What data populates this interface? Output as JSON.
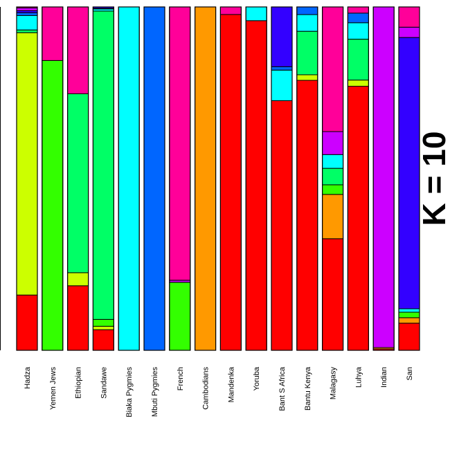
{
  "chart_data": {
    "type": "bar",
    "stacked": true,
    "normalized": true,
    "ylim": [
      0,
      1
    ],
    "title": "K = 10",
    "components": [
      {
        "color": "#ff0000"
      },
      {
        "color": "#ff9900"
      },
      {
        "color": "#ccff00"
      },
      {
        "color": "#33ff00"
      },
      {
        "color": "#00ff66"
      },
      {
        "color": "#00ffff"
      },
      {
        "color": "#0066ff"
      },
      {
        "color": "#3300ff"
      },
      {
        "color": "#cc00ff"
      },
      {
        "color": "#ff0099"
      }
    ],
    "categories": [
      "Hadza",
      "Yemen Jews",
      "Ethiopian",
      "Sandawe",
      "Biaka Pygmies",
      "Mbuti Pygmies",
      "French",
      "Cambodians",
      "Mandenka",
      "Yoruba",
      "Bant S Africa",
      "Bantu Kenya",
      "Malagasy",
      "Luhya",
      "Indian",
      "San"
    ],
    "values": [
      [
        0.161,
        0.0,
        0.764,
        0.0,
        0.008,
        0.042,
        0.008,
        0.006,
        0.008,
        0.003
      ],
      [
        0.0,
        0.0,
        0.0,
        0.844,
        0.0,
        0.0,
        0.0,
        0.0,
        0.0,
        0.156
      ],
      [
        0.188,
        0.0,
        0.038,
        0.0,
        0.521,
        0.0,
        0.0,
        0.0,
        0.0,
        0.253
      ],
      [
        0.06,
        0.0,
        0.01,
        0.02,
        0.898,
        0.006,
        0.002,
        0.004,
        0.0,
        0.0
      ],
      [
        0.0,
        0.0,
        0.0,
        0.0,
        0.0,
        1.0,
        0.0,
        0.0,
        0.0,
        0.0
      ],
      [
        0.0,
        0.0,
        0.0,
        0.0,
        0.0,
        0.0,
        1.0,
        0.0,
        0.0,
        0.0
      ],
      [
        0.0,
        0.0,
        0.0,
        0.198,
        0.0,
        0.0,
        0.0,
        0.0,
        0.006,
        0.796
      ],
      [
        0.0,
        1.0,
        0.0,
        0.0,
        0.0,
        0.0,
        0.0,
        0.0,
        0.0,
        0.0
      ],
      [
        0.978,
        0.0,
        0.0,
        0.0,
        0.0,
        0.0,
        0.0,
        0.0,
        0.0,
        0.022
      ],
      [
        0.96,
        0.0,
        0.0,
        0.0,
        0.0,
        0.04,
        0.0,
        0.0,
        0.0,
        0.0
      ],
      [
        0.727,
        0.0,
        0.0,
        0.0,
        0.0,
        0.089,
        0.01,
        0.174,
        0.0,
        0.0
      ],
      [
        0.776,
        0.0,
        0.016,
        0.0,
        0.125,
        0.048,
        0.022,
        0.0,
        0.0,
        0.0
      ],
      [
        0.325,
        0.129,
        0.0,
        0.028,
        0.048,
        0.04,
        0.0,
        0.0,
        0.067,
        0.363
      ],
      [
        0.769,
        0.0,
        0.018,
        0.0,
        0.119,
        0.048,
        0.028,
        0.0,
        0.0,
        0.018
      ],
      [
        0.004,
        0.004,
        0.0,
        0.0,
        0.0,
        0.0,
        0.0,
        0.0,
        0.992,
        0.0
      ],
      [
        0.079,
        0.016,
        0.0,
        0.016,
        0.0,
        0.01,
        0.0,
        0.79,
        0.03,
        0.059
      ]
    ]
  }
}
